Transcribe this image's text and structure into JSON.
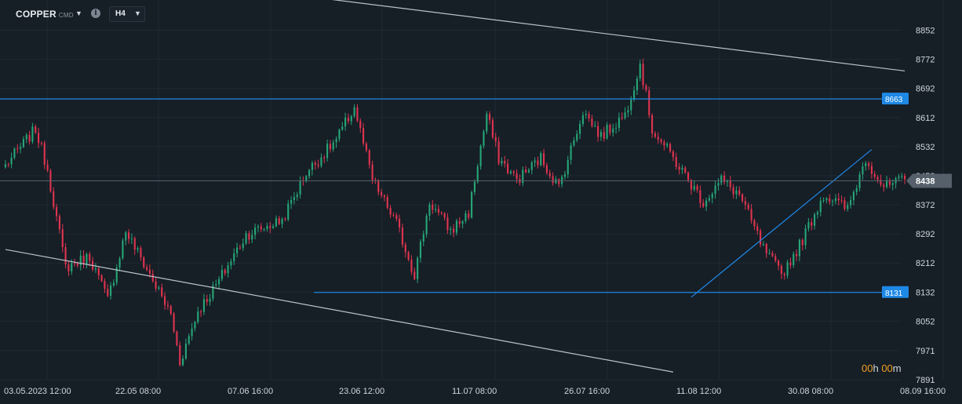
{
  "toolbar": {
    "symbol": "COPPER",
    "symbol_exchange": "CMD",
    "symbol_caret": "▼",
    "info_icon": "i",
    "timeframe": "H4",
    "timeframe_caret": "▼"
  },
  "countdown": {
    "hours": "00",
    "h": "h",
    "minutes": "00",
    "m": "m"
  },
  "colors": {
    "background": "#161e26",
    "grid": "#1f2a33",
    "bull": "#26a677",
    "bear": "#e0344f",
    "level_line": "#1e88e5",
    "channel_line": "#b9c3cc",
    "current_price": "#55606b"
  },
  "chart_data": {
    "type": "candlestick",
    "title": "COPPER",
    "timeframe": "H4",
    "ylim": [
      7891,
      8892
    ],
    "y_ticks": [
      8852,
      8772,
      8692,
      8612,
      8532,
      8452,
      8372,
      8292,
      8212,
      8132,
      8052,
      7971,
      7891
    ],
    "x_ticks": [
      "03.05.2023  12:00",
      "22.05  08:00",
      "07.06  16:00",
      "23.06  12:00",
      "11.07  08:00",
      "26.07  16:00",
      "11.08  12:00",
      "30.08  08:00",
      "08.09  16:00"
    ],
    "current_price": {
      "value": 8438,
      "label": "8438"
    },
    "levels": [
      {
        "value": 8663,
        "label": "8663"
      },
      {
        "value": 8131,
        "label": "8131"
      }
    ],
    "bars_count": 300,
    "close_anchors": [
      [
        0,
        8480
      ],
      [
        10,
        8580
      ],
      [
        14,
        8470
      ],
      [
        20,
        8200
      ],
      [
        28,
        8230
      ],
      [
        34,
        8110
      ],
      [
        40,
        8300
      ],
      [
        48,
        8180
      ],
      [
        55,
        8070
      ],
      [
        58,
        7940
      ],
      [
        64,
        8080
      ],
      [
        70,
        8150
      ],
      [
        80,
        8290
      ],
      [
        92,
        8330
      ],
      [
        100,
        8460
      ],
      [
        110,
        8550
      ],
      [
        116,
        8640
      ],
      [
        122,
        8440
      ],
      [
        130,
        8320
      ],
      [
        136,
        8180
      ],
      [
        141,
        8380
      ],
      [
        148,
        8300
      ],
      [
        154,
        8350
      ],
      [
        160,
        8620
      ],
      [
        164,
        8500
      ],
      [
        170,
        8440
      ],
      [
        178,
        8500
      ],
      [
        184,
        8420
      ],
      [
        192,
        8630
      ],
      [
        198,
        8560
      ],
      [
        206,
        8620
      ],
      [
        211,
        8760
      ],
      [
        215,
        8580
      ],
      [
        222,
        8500
      ],
      [
        232,
        8380
      ],
      [
        238,
        8440
      ],
      [
        244,
        8400
      ],
      [
        252,
        8250
      ],
      [
        258,
        8180
      ],
      [
        264,
        8260
      ],
      [
        272,
        8400
      ],
      [
        280,
        8360
      ],
      [
        286,
        8500
      ],
      [
        292,
        8420
      ],
      [
        299,
        8440
      ]
    ],
    "trend_lines": [
      {
        "name": "channel-upper",
        "from": [
          108,
          8937
        ],
        "to": [
          299,
          8740
        ]
      },
      {
        "name": "channel-lower",
        "from": [
          0,
          8249
        ],
        "to": [
          222,
          7912
        ]
      },
      {
        "name": "support-trendline",
        "from": [
          228,
          8118
        ],
        "to": [
          288,
          8524
        ]
      }
    ]
  }
}
